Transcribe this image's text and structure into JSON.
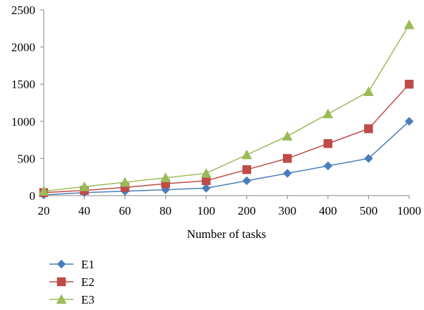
{
  "chart_data": {
    "type": "line",
    "title": "",
    "xlabel": "Number of tasks",
    "ylabel": "",
    "categories": [
      "20",
      "40",
      "60",
      "80",
      "100",
      "200",
      "300",
      "400",
      "500",
      "1000"
    ],
    "ylim": [
      0,
      2500
    ],
    "yticks": [
      0,
      500,
      1000,
      1500,
      2000,
      2500
    ],
    "grid": false,
    "legend_position": "bottom-left",
    "series": [
      {
        "name": "E1",
        "color": "#4a7ebb",
        "marker": "diamond",
        "values": [
          10,
          40,
          60,
          80,
          100,
          200,
          300,
          400,
          500,
          1000
        ]
      },
      {
        "name": "E2",
        "color": "#be4b48",
        "marker": "square",
        "values": [
          40,
          70,
          110,
          160,
          200,
          350,
          500,
          700,
          900,
          1500
        ]
      },
      {
        "name": "E3",
        "color": "#9bbb59",
        "marker": "triangle",
        "values": [
          60,
          120,
          180,
          240,
          300,
          550,
          800,
          1100,
          1400,
          2300
        ]
      }
    ]
  }
}
